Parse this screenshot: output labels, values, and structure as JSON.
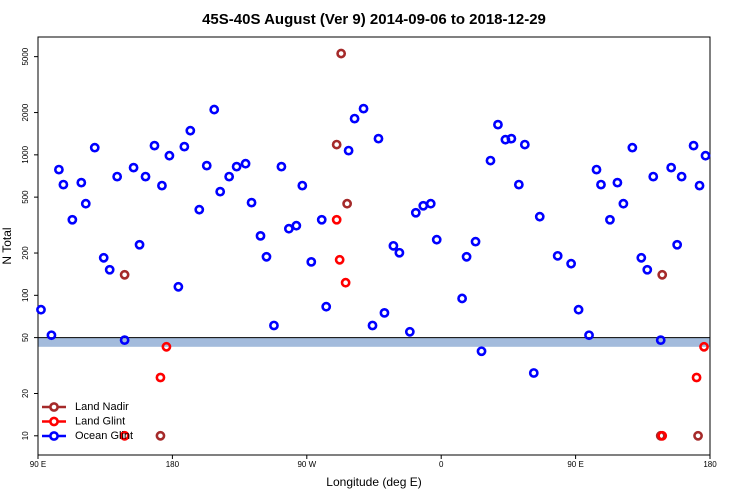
{
  "chart_data": {
    "type": "scatter",
    "title": "45S-40S August (Ver 9)   2014-09-06 to 2018-12-29",
    "x_label": "Longitude (deg E)",
    "y_label": "N Total",
    "log_y": true,
    "legend": "lower left",
    "xlim": [
      90,
      540
    ],
    "ylim": [
      7.3,
      6900
    ],
    "xticks": [
      {
        "value": 90,
        "label": "90 E"
      },
      180,
      {
        "value": 270,
        "label": "90 W"
      },
      {
        "value": 360,
        "label": "0"
      },
      {
        "value": 450,
        "label": "90 E"
      },
      {
        "value": 540,
        "label": "180"
      }
    ],
    "yticks": [
      10,
      20,
      50,
      100,
      200,
      500,
      1000,
      2000,
      5000
    ],
    "reference_line": 50,
    "reference_band": [
      43,
      50
    ],
    "band_color": "#a3bbdc",
    "series": [
      {
        "name": "Land Nadir",
        "color": "#a52a2a",
        "x": [
          148,
          172,
          293,
          290,
          297,
          508,
          507,
          532
        ],
        "values": [
          140,
          10,
          5260,
          1183,
          449,
          140,
          10,
          10
        ]
      },
      {
        "name": "Land Glint",
        "color": "#ff0000",
        "x": [
          148,
          172,
          176,
          290,
          292,
          296,
          508,
          531,
          536
        ],
        "values": [
          10,
          26,
          43,
          345,
          179,
          123,
          10,
          26,
          43
        ]
      },
      {
        "name": "Ocean Glint",
        "color": "#0000ff",
        "x": [
          92,
          99,
          104,
          107,
          113,
          119,
          122,
          128,
          134,
          138,
          143,
          148,
          154,
          158,
          162,
          168,
          173,
          178,
          184,
          188,
          192,
          198,
          203,
          208,
          212,
          218,
          223,
          229,
          233,
          239,
          243,
          248,
          253,
          258,
          263,
          267,
          273,
          280,
          283,
          298,
          302,
          308,
          314,
          318,
          322,
          328,
          332,
          339,
          343,
          348,
          353,
          357,
          374,
          377,
          383,
          387,
          393,
          398,
          403,
          407,
          412,
          416,
          422,
          426,
          438,
          447,
          452,
          459,
          464,
          467,
          473,
          478,
          482,
          488,
          494,
          498,
          502,
          507,
          514,
          518,
          521,
          529,
          533,
          537
        ],
        "values": [
          79,
          52,
          785,
          614,
          345,
          634,
          449,
          1125,
          185,
          152,
          700,
          48,
          811,
          229,
          700,
          1163,
          604,
          986,
          115,
          1144,
          1486,
          407,
          838,
          2100,
          547,
          700,
          824,
          865,
          457,
          265,
          188,
          61,
          824,
          298,
          313,
          604,
          173,
          345,
          83,
          1072,
          1811,
          2133,
          61,
          1304,
          75,
          225,
          201,
          55,
          387,
          434,
          449,
          249,
          95,
          188,
          241,
          40,
          910,
          1641,
          1282,
          1304,
          614,
          1183,
          28,
          363,
          191,
          168,
          79,
          52,
          785,
          614,
          345,
          634,
          449,
          1125,
          185,
          152,
          700,
          48,
          811,
          229,
          700,
          1163,
          604,
          986
        ]
      }
    ]
  }
}
